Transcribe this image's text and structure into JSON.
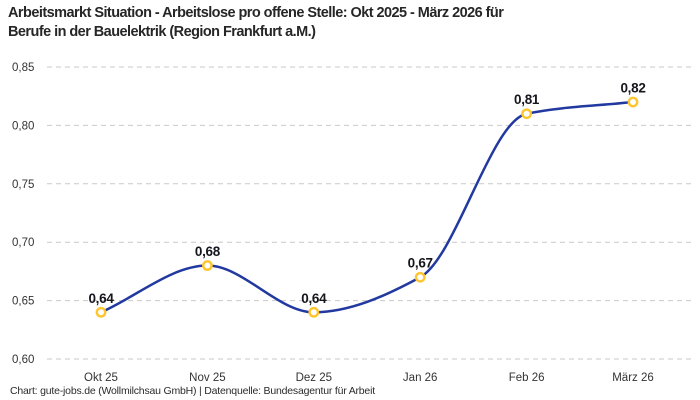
{
  "title": {
    "line1": "Arbeitsmarkt Situation - Arbeitslose pro offene Stelle: Okt 2025 - März 2026 für",
    "line2": "Berufe in der Bauelektrik (Region Frankfurt a.M.)"
  },
  "footer": "Chart: gute-jobs.de (Wollmilchsau GmbH) | Datenquelle: Bundesagentur für Arbeit",
  "chart_data": {
    "type": "line",
    "title": "Arbeitsmarkt Situation - Arbeitslose pro offene Stelle: Okt 2025 - März 2026 für Berufe in der Bauelektrik (Region Frankfurt a.M.)",
    "categories": [
      "Okt 25",
      "Nov 25",
      "Dez 25",
      "Jan 26",
      "Feb 26",
      "März 26"
    ],
    "values": [
      0.64,
      0.68,
      0.64,
      0.67,
      0.81,
      0.82
    ],
    "value_labels": [
      "0,64",
      "0,68",
      "0,64",
      "0,67",
      "0,81",
      "0,82"
    ],
    "y_ticks": [
      0.6,
      0.65,
      0.7,
      0.75,
      0.8,
      0.85
    ],
    "y_tick_labels": [
      "0,60",
      "0,65",
      "0,70",
      "0,75",
      "0,80",
      "0,85"
    ],
    "ylim": [
      0.6,
      0.85
    ],
    "xlabel": "",
    "ylabel": "",
    "legend": "none",
    "grid": "horizontal-dashed",
    "curve": "monotone-x",
    "colors": {
      "line": "#2239A0",
      "marker_stroke": "#FFC52E",
      "marker_fill": "#FFFFFF",
      "grid": "#C9C9C9",
      "point_label": "#15151e",
      "tick_label": "#333333",
      "title": "#262626"
    }
  }
}
